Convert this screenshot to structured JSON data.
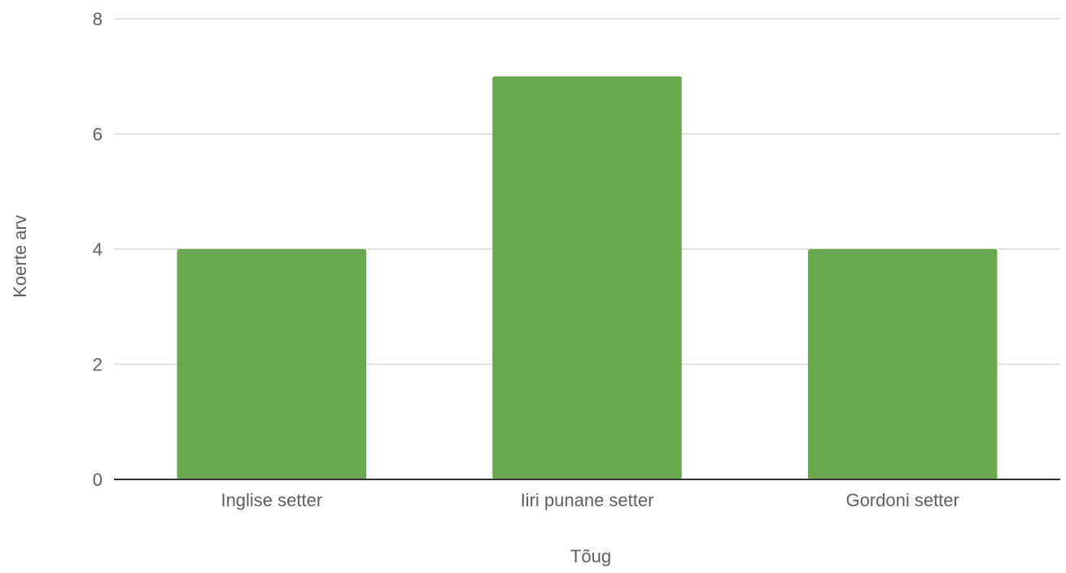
{
  "chart_data": {
    "type": "bar",
    "categories": [
      "Inglise setter",
      "Iiri punane setter",
      "Gordoni setter"
    ],
    "values": [
      4,
      7,
      4
    ],
    "xlabel": "Tõug",
    "ylabel": "Koerte arv",
    "ylim": [
      0,
      8
    ],
    "yticks": [
      0,
      2,
      4,
      6,
      8
    ],
    "grid": true,
    "legend": "none",
    "bar_color": "#6aa84f",
    "grid_color": "#d9d9d9",
    "axis_color": "#333333",
    "text_color": "#5f5f5f"
  }
}
